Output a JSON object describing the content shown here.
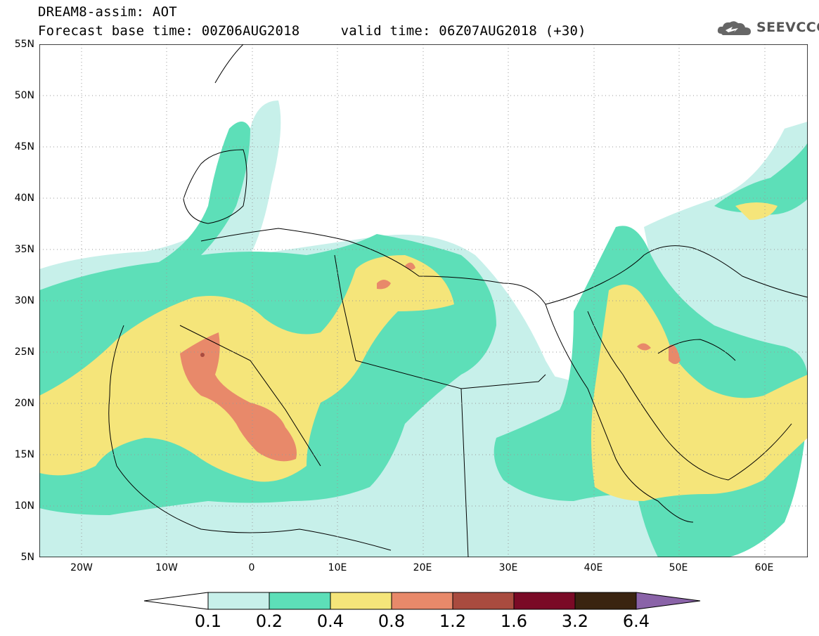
{
  "header": {
    "title_line1": "DREAM8-assim: AOT",
    "title_line2": "Forecast base time: 00Z06AUG2018     valid time: 06Z07AUG2018 (+30)"
  },
  "logo": {
    "text": "SEEVCCC",
    "icon": "cloud-logo-icon"
  },
  "map": {
    "lat_labels": [
      "55N",
      "50N",
      "45N",
      "40N",
      "35N",
      "30N",
      "25N",
      "20N",
      "15N",
      "10N",
      "5N"
    ],
    "lon_labels": [
      "20W",
      "10W",
      "0",
      "10E",
      "20E",
      "30E",
      "40E",
      "50E",
      "60E"
    ],
    "lon_range": [
      -25,
      65
    ],
    "lat_range": [
      5,
      55
    ]
  },
  "legend": {
    "labels": [
      "0.1",
      "0.2",
      "0.4",
      "0.8",
      "1.2",
      "1.6",
      "3.2",
      "6.4"
    ],
    "colors": [
      "#c7f0ea",
      "#5ddfb8",
      "#f5e57a",
      "#e8896a",
      "#a94b3f",
      "#7a0a26",
      "#3a2410",
      "#8a63a8"
    ],
    "under_color": "#ffffff"
  }
}
